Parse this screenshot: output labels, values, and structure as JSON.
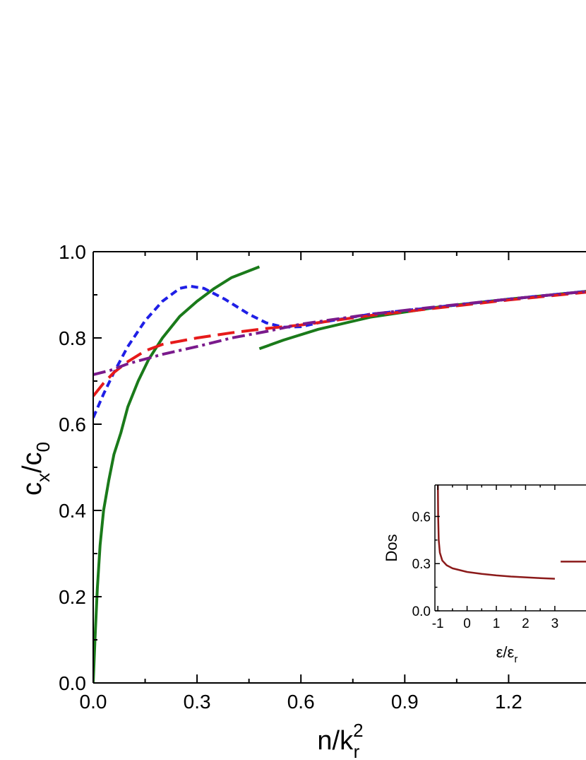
{
  "chart_data": {
    "main": {
      "type": "line",
      "xlim": [
        0,
        1.45
      ],
      "ylim": [
        0,
        1.0
      ],
      "xticks": [
        "0.0",
        "0.3",
        "0.6",
        "0.9",
        "1.2"
      ],
      "xtick_values": [
        0,
        0.3,
        0.6,
        0.9,
        1.2
      ],
      "yticks": [
        "0.0",
        "0.2",
        "0.4",
        "0.6",
        "0.8",
        "1.0"
      ],
      "ytick_values": [
        0,
        0.2,
        0.4,
        0.6,
        0.8,
        1.0
      ],
      "xlabel": {
        "base": "n/k",
        "sup": "2",
        "sub": "r"
      },
      "ylabel": {
        "c1": "c",
        "s1": "x",
        "slash": "/",
        "c2": "c",
        "s2": "0"
      },
      "grid": false,
      "series": [
        {
          "color": "#1a7a1a",
          "dash": "solid",
          "segments": [
            [
              [
                0.0,
                0.0
              ],
              [
                0.005,
                0.1
              ],
              [
                0.012,
                0.22
              ],
              [
                0.02,
                0.32
              ],
              [
                0.03,
                0.4
              ],
              [
                0.045,
                0.47
              ],
              [
                0.06,
                0.53
              ],
              [
                0.08,
                0.58
              ],
              [
                0.1,
                0.64
              ],
              [
                0.13,
                0.7
              ],
              [
                0.16,
                0.75
              ],
              [
                0.2,
                0.8
              ],
              [
                0.25,
                0.85
              ],
              [
                0.3,
                0.885
              ],
              [
                0.35,
                0.915
              ],
              [
                0.4,
                0.94
              ],
              [
                0.48,
                0.965
              ]
            ],
            [
              [
                0.48,
                0.775
              ],
              [
                0.55,
                0.795
              ],
              [
                0.65,
                0.82
              ],
              [
                0.8,
                0.848
              ],
              [
                1.0,
                0.872
              ],
              [
                1.2,
                0.89
              ],
              [
                1.45,
                0.91
              ]
            ]
          ]
        },
        {
          "color": "#1f1fe6",
          "dash": "short",
          "segments": [
            [
              [
                0.0,
                0.615
              ],
              [
                0.03,
                0.67
              ],
              [
                0.06,
                0.72
              ],
              [
                0.1,
                0.78
              ],
              [
                0.15,
                0.84
              ],
              [
                0.2,
                0.885
              ],
              [
                0.25,
                0.915
              ],
              [
                0.28,
                0.92
              ],
              [
                0.32,
                0.915
              ],
              [
                0.38,
                0.89
              ],
              [
                0.45,
                0.855
              ],
              [
                0.5,
                0.835
              ],
              [
                0.55,
                0.825
              ],
              [
                0.6,
                0.826
              ],
              [
                0.65,
                0.835
              ],
              [
                0.8,
                0.855
              ],
              [
                1.0,
                0.872
              ],
              [
                1.2,
                0.89
              ],
              [
                1.45,
                0.91
              ]
            ]
          ]
        },
        {
          "color": "#e61a1a",
          "dash": "long",
          "segments": [
            [
              [
                0.0,
                0.665
              ],
              [
                0.03,
                0.695
              ],
              [
                0.06,
                0.72
              ],
              [
                0.1,
                0.745
              ],
              [
                0.15,
                0.77
              ],
              [
                0.2,
                0.785
              ],
              [
                0.3,
                0.8
              ],
              [
                0.4,
                0.812
              ],
              [
                0.5,
                0.822
              ],
              [
                0.6,
                0.83
              ],
              [
                0.8,
                0.852
              ],
              [
                1.0,
                0.87
              ],
              [
                1.2,
                0.888
              ],
              [
                1.45,
                0.908
              ]
            ]
          ]
        },
        {
          "color": "#7a1a8c",
          "dash": "dashdot",
          "segments": [
            [
              [
                0.0,
                0.715
              ],
              [
                0.05,
                0.725
              ],
              [
                0.1,
                0.74
              ],
              [
                0.2,
                0.762
              ],
              [
                0.3,
                0.78
              ],
              [
                0.4,
                0.8
              ],
              [
                0.5,
                0.815
              ],
              [
                0.6,
                0.832
              ],
              [
                0.8,
                0.855
              ],
              [
                1.0,
                0.873
              ],
              [
                1.2,
                0.89
              ],
              [
                1.45,
                0.91
              ]
            ]
          ]
        }
      ]
    },
    "inset": {
      "type": "line",
      "xlim": [
        -1.1,
        4.5
      ],
      "ylim": [
        0.0,
        0.8
      ],
      "xticks": [
        "-1",
        "0",
        "1",
        "2",
        "3"
      ],
      "xtick_values": [
        -1,
        0,
        1,
        2,
        3
      ],
      "yticks": [
        "0.0",
        "0.3",
        "0.6"
      ],
      "ytick_values": [
        0,
        0.3,
        0.6
      ],
      "ylabel": "Dos",
      "xlabel": {
        "base": "ε/ε",
        "sub": "r"
      },
      "series": [
        {
          "color": "#8b1a1a",
          "dash": "solid",
          "segments": [
            [
              [
                -0.999,
                0.8
              ],
              [
                -0.99,
                0.6
              ],
              [
                -0.97,
                0.45
              ],
              [
                -0.93,
                0.37
              ],
              [
                -0.85,
                0.32
              ],
              [
                -0.7,
                0.29
              ],
              [
                -0.5,
                0.27
              ],
              [
                0.0,
                0.247
              ],
              [
                0.5,
                0.235
              ],
              [
                1.0,
                0.225
              ],
              [
                1.5,
                0.218
              ],
              [
                2.0,
                0.213
              ],
              [
                2.5,
                0.208
              ],
              [
                3.0,
                0.204
              ]
            ],
            [
              [
                3.2,
                0.313
              ],
              [
                4.5,
                0.313
              ]
            ]
          ]
        }
      ]
    }
  }
}
